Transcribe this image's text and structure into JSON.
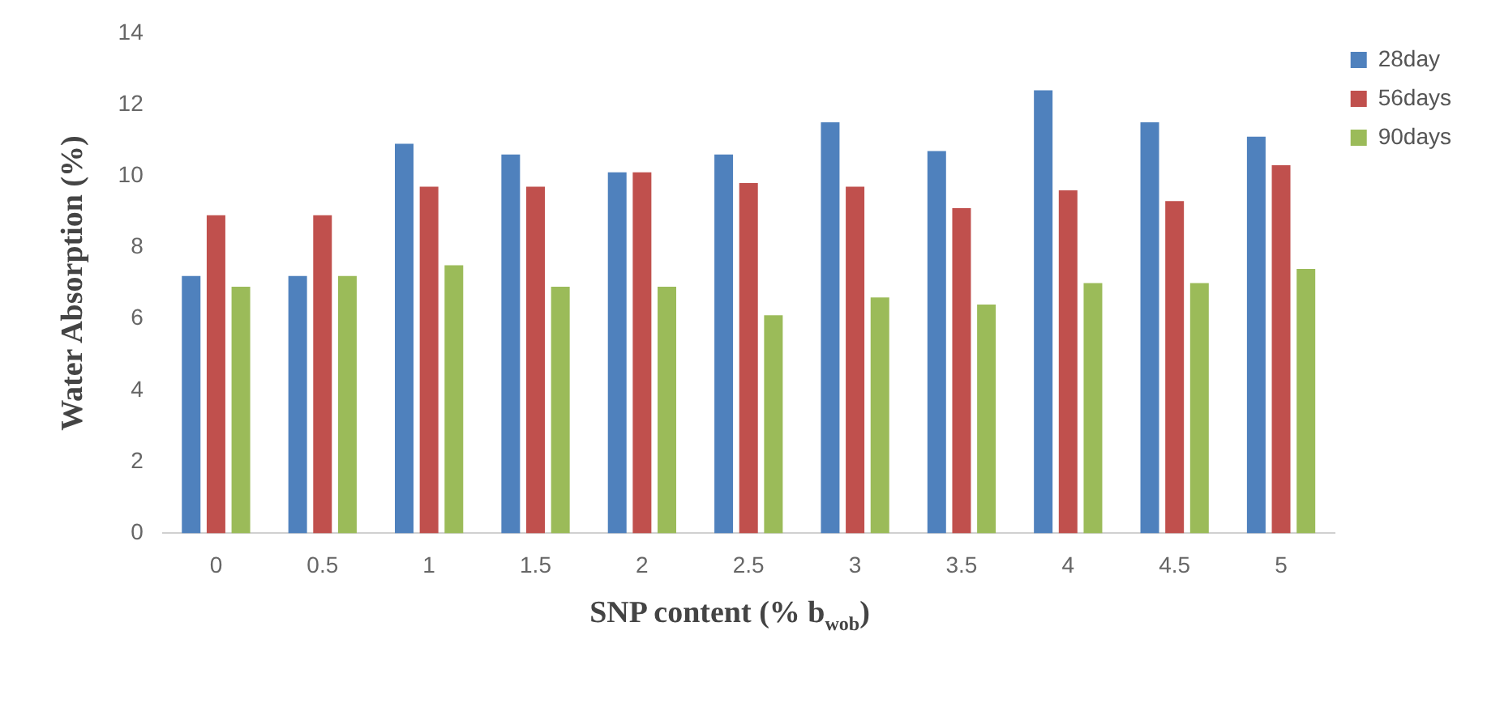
{
  "chart_data": {
    "type": "bar",
    "xlabel": "SNP content (% b$_{wob}$)",
    "ylabel": "Water Absorption (%)",
    "categories": [
      "0",
      "0.5",
      "1",
      "1.5",
      "2",
      "2.5",
      "3",
      "3.5",
      "4",
      "4.5",
      "5"
    ],
    "series": [
      {
        "name": "28day",
        "color": "#4f81bd",
        "values": [
          7.2,
          7.2,
          10.9,
          10.6,
          10.1,
          10.6,
          11.5,
          10.7,
          12.4,
          11.5,
          11.1
        ]
      },
      {
        "name": "56days",
        "color": "#c0504d",
        "values": [
          8.9,
          8.9,
          9.7,
          9.7,
          10.1,
          9.8,
          9.7,
          9.1,
          9.6,
          9.3,
          10.3
        ]
      },
      {
        "name": "90days",
        "color": "#9bbb59",
        "values": [
          6.9,
          7.2,
          7.5,
          6.9,
          6.9,
          6.1,
          6.6,
          6.4,
          7.0,
          7.0,
          7.4
        ]
      }
    ],
    "ylim": [
      0,
      14
    ],
    "yticks": [
      0,
      2,
      4,
      6,
      8,
      10,
      12,
      14
    ],
    "grid": false,
    "legend": "top right"
  }
}
